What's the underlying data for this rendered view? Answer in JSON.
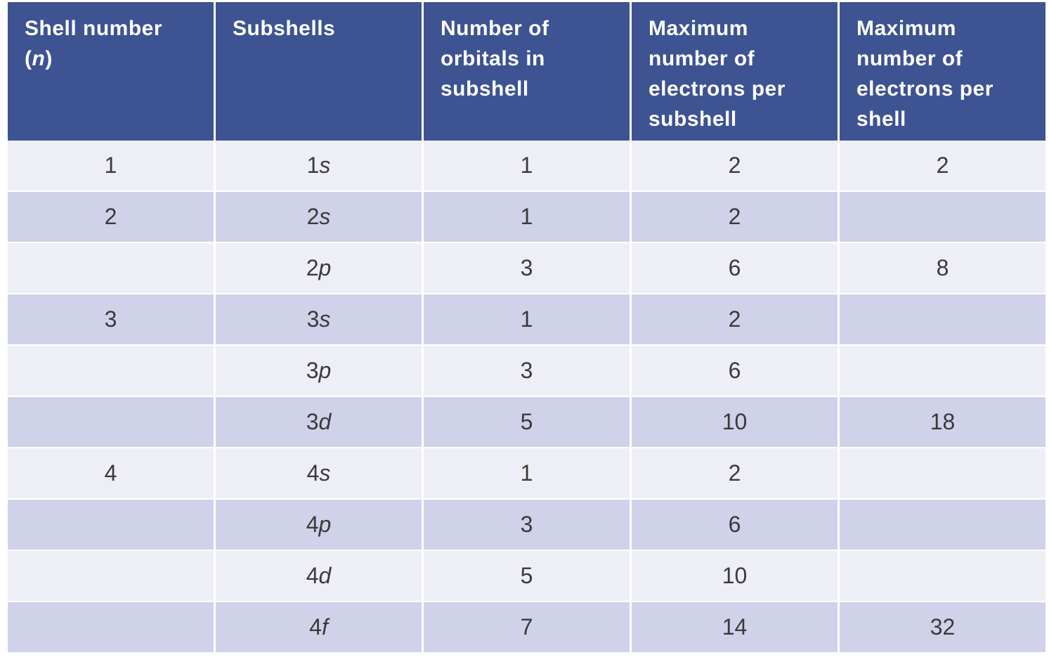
{
  "table": {
    "header": [
      "Shell number (n)",
      "Subshells",
      "Number of orbitals in subshell",
      "Maximum number of electrons per subshell",
      "Maximum number of electrons per shell"
    ],
    "rows": [
      [
        1,
        "1s",
        1,
        2,
        2
      ],
      [
        2,
        "2s",
        1,
        2,
        null
      ],
      [
        null,
        "2p",
        3,
        6,
        8
      ],
      [
        3,
        "3s",
        1,
        2,
        null
      ],
      [
        null,
        "3p",
        3,
        6,
        null
      ],
      [
        null,
        "3d",
        5,
        10,
        18
      ],
      [
        4,
        "4s",
        1,
        2,
        null
      ],
      [
        null,
        "4p",
        3,
        6,
        null
      ],
      [
        null,
        "4d",
        5,
        10,
        null
      ],
      [
        null,
        "4f",
        7,
        14,
        32
      ]
    ]
  }
}
